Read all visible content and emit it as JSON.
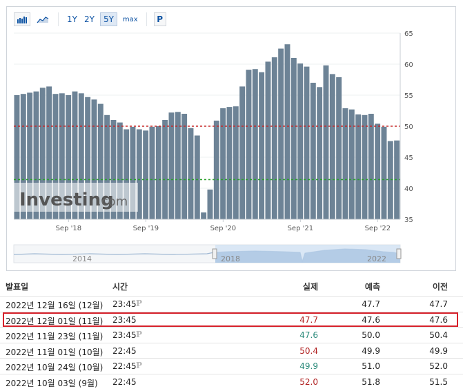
{
  "toolbar": {
    "periods": [
      "1Y",
      "2Y",
      "5Y"
    ],
    "max_label": "max",
    "p_label": "P",
    "active_period": "5Y"
  },
  "chart_data": {
    "type": "bar",
    "title": "",
    "xlabel": "",
    "ylabel": "",
    "ylim": [
      35,
      65
    ],
    "y_ticks": [
      35,
      40,
      45,
      50,
      55,
      60,
      65
    ],
    "x_ticks": [
      "Sep '18",
      "Sep '19",
      "Sep '20",
      "Sep '21",
      "Sep '22"
    ],
    "x": [
      "2018-01",
      "2018-02",
      "2018-03",
      "2018-04",
      "2018-05",
      "2018-06",
      "2018-07",
      "2018-08",
      "2018-09",
      "2018-10",
      "2018-11",
      "2018-12",
      "2019-01",
      "2019-02",
      "2019-03",
      "2019-04",
      "2019-05",
      "2019-06",
      "2019-07",
      "2019-08",
      "2019-09",
      "2019-10",
      "2019-11",
      "2019-12",
      "2020-01",
      "2020-02",
      "2020-03",
      "2020-04",
      "2020-05",
      "2020-06",
      "2020-07",
      "2020-08",
      "2020-09",
      "2020-10",
      "2020-11",
      "2020-12",
      "2021-01",
      "2021-02",
      "2021-03",
      "2021-04",
      "2021-05",
      "2021-06",
      "2021-07",
      "2021-08",
      "2021-09",
      "2021-10",
      "2021-11",
      "2021-12",
      "2022-01",
      "2022-02",
      "2022-03",
      "2022-04",
      "2022-05",
      "2022-06",
      "2022-07",
      "2022-08",
      "2022-09",
      "2022-10",
      "2022-11",
      "2022-12"
    ],
    "values": [
      55.0,
      55.2,
      55.4,
      55.6,
      56.2,
      56.4,
      55.2,
      55.3,
      55.0,
      55.6,
      55.3,
      54.7,
      54.3,
      53.6,
      51.8,
      51.0,
      50.6,
      49.5,
      49.9,
      49.5,
      49.3,
      49.9,
      50.0,
      51.0,
      52.2,
      52.3,
      52.0,
      49.7,
      48.5,
      36.1,
      39.8,
      50.9,
      52.9,
      53.1,
      53.2,
      56.4,
      59.1,
      59.2,
      58.7,
      60.4,
      61.1,
      62.5,
      63.2,
      61.0,
      60.1,
      59.6,
      57.0,
      56.3,
      59.8,
      58.4,
      57.9,
      52.9,
      52.7,
      51.9,
      51.8,
      52.0,
      50.4,
      49.9,
      47.6,
      47.7
    ],
    "reference_lines": [
      {
        "value": 50,
        "color": "#c82828"
      },
      {
        "value": 41.4,
        "color": "#2aa02a"
      }
    ],
    "navigator_labels": [
      "2014",
      "2018",
      "2022"
    ],
    "watermark": "Investing.com",
    "bar_color": "#6d8396"
  },
  "table": {
    "headers": {
      "date": "발표일",
      "time": "시간",
      "actual": "실제",
      "forecast": "예측",
      "previous": "이전"
    },
    "rows": [
      {
        "date": "2022년 12월 16일 (12월)",
        "time": "23:45",
        "preliminary": "P",
        "actual": "",
        "actual_color": "",
        "forecast": "47.7",
        "previous": "47.7"
      },
      {
        "date": "2022년 12월 01일 (11월)",
        "time": "23:45",
        "preliminary": "",
        "actual": "47.7",
        "actual_color": "red",
        "forecast": "47.6",
        "previous": "47.6",
        "highlighted": true
      },
      {
        "date": "2022년 11월 23일 (11월)",
        "time": "23:45",
        "preliminary": "P",
        "actual": "47.6",
        "actual_color": "green",
        "forecast": "50.0",
        "previous": "50.4"
      },
      {
        "date": "2022년 11월 01일 (10월)",
        "time": "22:45",
        "preliminary": "",
        "actual": "50.4",
        "actual_color": "red",
        "forecast": "49.9",
        "previous": "49.9"
      },
      {
        "date": "2022년 10월 24일 (10월)",
        "time": "22:45",
        "preliminary": "P",
        "actual": "49.9",
        "actual_color": "green",
        "forecast": "51.0",
        "previous": "52.0"
      },
      {
        "date": "2022년 10월 03일 (9월)",
        "time": "22:45",
        "preliminary": "",
        "actual": "52.0",
        "actual_color": "red",
        "forecast": "51.8",
        "previous": "51.5"
      }
    ]
  }
}
